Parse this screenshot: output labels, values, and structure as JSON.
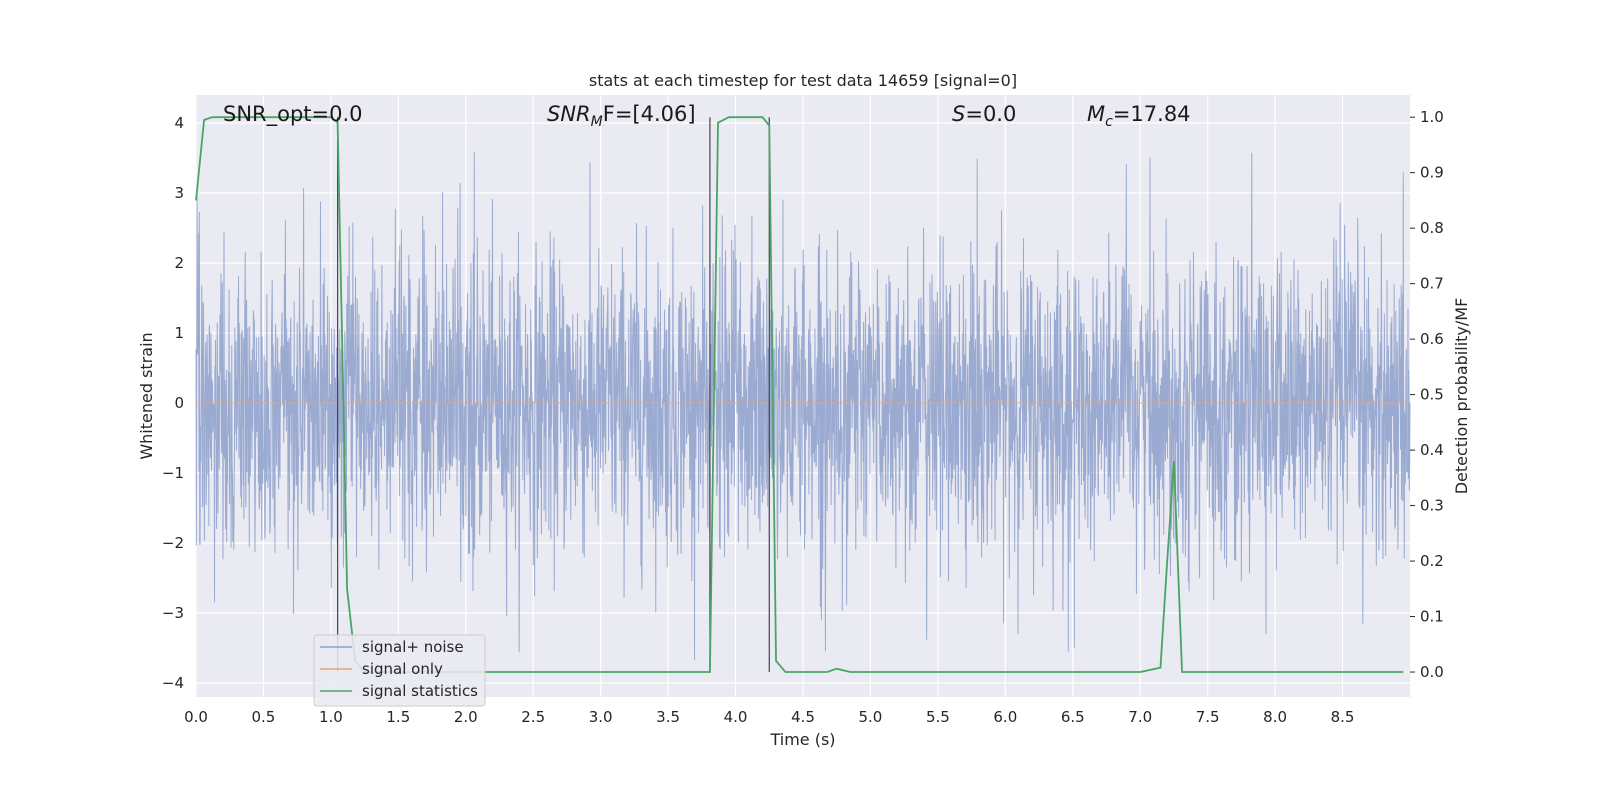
{
  "chart_data": {
    "type": "line",
    "title": "stats at each timestep for test data 14659 [signal=0]",
    "xlabel": "Time (s)",
    "ylabel": "Whitened strain",
    "y2label": "Detection probability/MF",
    "xlim": [
      0.0,
      9.0
    ],
    "ylim": [
      -4.2,
      4.4
    ],
    "y2lim": [
      -0.045,
      1.04
    ],
    "x_ticks": [
      "0.0",
      "0.5",
      "1.0",
      "1.5",
      "2.0",
      "2.5",
      "3.0",
      "3.5",
      "4.0",
      "4.5",
      "5.0",
      "5.5",
      "6.0",
      "6.5",
      "7.0",
      "7.5",
      "8.0",
      "8.5"
    ],
    "y_ticks": [
      "4",
      "3",
      "2",
      "1",
      "0",
      "−1",
      "−2",
      "−3",
      "−4"
    ],
    "y2_ticks": [
      "1.0",
      "0.9",
      "0.8",
      "0.7",
      "0.6",
      "0.5",
      "0.4",
      "0.3",
      "0.2",
      "0.1",
      "0.0"
    ],
    "grid": true,
    "legend_position": "lower-left",
    "annotations": {
      "snr_opt": "SNR_opt=0.0",
      "snr_mf_main": "SNR",
      "snr_mf_sub": "M",
      "snr_mf_rest": "F=[4.06]",
      "s_main": "S",
      "s_rest": "=0.0",
      "mc_main": "M",
      "mc_sub": "c",
      "mc_rest": "=17.84"
    },
    "vertical_markers_x": [
      1.05,
      3.81,
      4.25
    ],
    "noise_amplitude_envelope": {
      "typical_max": 2.5,
      "peak_max": 3.6,
      "typical_min": -2.5,
      "peak_min": -3.8
    },
    "series": [
      {
        "name": "signal+ noise",
        "color": "#8c9fca"
      },
      {
        "name": "signal only",
        "color": "#e8a27c",
        "values_constant": 0.0
      },
      {
        "name": "signal statistics",
        "color": "#4aa564",
        "axis": "right",
        "x": [
          0.0,
          0.06,
          0.12,
          0.3,
          0.5,
          0.8,
          0.95,
          1.0,
          1.05,
          1.1,
          1.12,
          1.18,
          1.25,
          1.5,
          2.0,
          2.5,
          3.0,
          3.5,
          3.81,
          3.87,
          3.95,
          4.1,
          4.2,
          4.25,
          4.3,
          4.37,
          4.5,
          4.68,
          4.75,
          4.85,
          5.0,
          6.0,
          7.0,
          7.15,
          7.2,
          7.25,
          7.31,
          7.4,
          8.0,
          8.5,
          8.95
        ],
        "y": [
          0.85,
          0.995,
          1.0,
          1.0,
          1.0,
          1.0,
          1.0,
          1.0,
          0.99,
          0.4,
          0.15,
          0.02,
          0.0,
          0.0,
          0.0,
          0.0,
          0.0,
          0.0,
          0.0,
          0.99,
          1.0,
          1.0,
          1.0,
          0.985,
          0.02,
          0.0,
          0.0,
          0.0,
          0.006,
          0.0,
          0.0,
          0.0,
          0.0,
          0.008,
          0.2,
          0.38,
          0.0,
          0.0,
          0.0,
          0.0,
          0.0
        ]
      }
    ]
  }
}
